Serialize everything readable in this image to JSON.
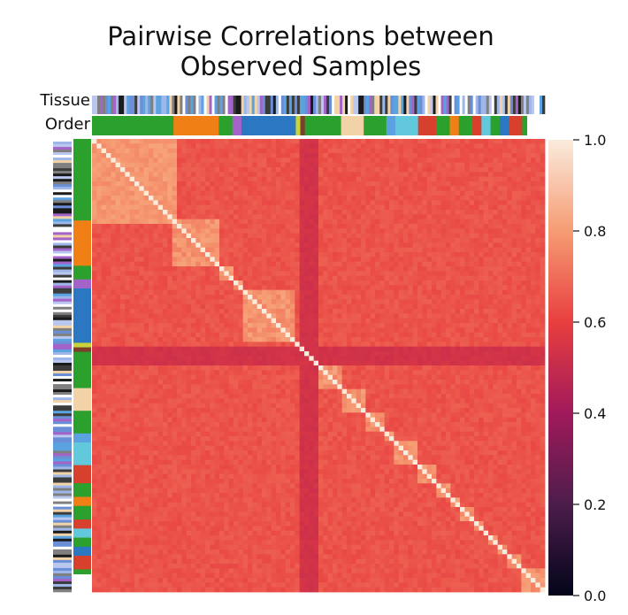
{
  "chart_data": {
    "type": "heatmap",
    "title_line1": "Pairwise Correlations between",
    "title_line2": "Observed Samples",
    "row_annotation_labels": [
      "Tissue",
      "Order"
    ],
    "colorbar": {
      "min": 0.0,
      "max": 1.0,
      "ticks": [
        "1.0",
        "0.8",
        "0.6",
        "0.4",
        "0.2",
        "0.0"
      ],
      "tick_values": [
        1.0,
        0.8,
        0.6,
        0.4,
        0.2,
        0.0
      ],
      "colormap": "rocket"
    },
    "order_blocks": [
      {
        "color": "#2ca02c",
        "fraction": 0.18
      },
      {
        "color": "#f07f16",
        "fraction": 0.1
      },
      {
        "color": "#2ca02c",
        "fraction": 0.03
      },
      {
        "color": "#a463c9",
        "fraction": 0.02
      },
      {
        "color": "#2b77c2",
        "fraction": 0.12
      },
      {
        "color": "#c8d23a",
        "fraction": 0.01
      },
      {
        "color": "#7b3f2a",
        "fraction": 0.01
      },
      {
        "color": "#2ca02c",
        "fraction": 0.08
      },
      {
        "color": "#f2d3a8",
        "fraction": 0.05
      },
      {
        "color": "#2ca02c",
        "fraction": 0.05
      },
      {
        "color": "#5aa3e0",
        "fraction": 0.02
      },
      {
        "color": "#62c9dc",
        "fraction": 0.05
      },
      {
        "color": "#d6402d",
        "fraction": 0.04
      },
      {
        "color": "#2ca02c",
        "fraction": 0.03
      },
      {
        "color": "#f07f16",
        "fraction": 0.02
      },
      {
        "color": "#2ca02c",
        "fraction": 0.03
      },
      {
        "color": "#d6402d",
        "fraction": 0.02
      },
      {
        "color": "#62c9dc",
        "fraction": 0.02
      },
      {
        "color": "#2ca02c",
        "fraction": 0.02
      },
      {
        "color": "#2b77c2",
        "fraction": 0.02
      },
      {
        "color": "#d6402d",
        "fraction": 0.03
      },
      {
        "color": "#2ca02c",
        "fraction": 0.01
      }
    ],
    "low_correlation_band_fraction": [
      0.455,
      0.495
    ],
    "values_description_range": [
      0.55,
      1.0
    ]
  }
}
